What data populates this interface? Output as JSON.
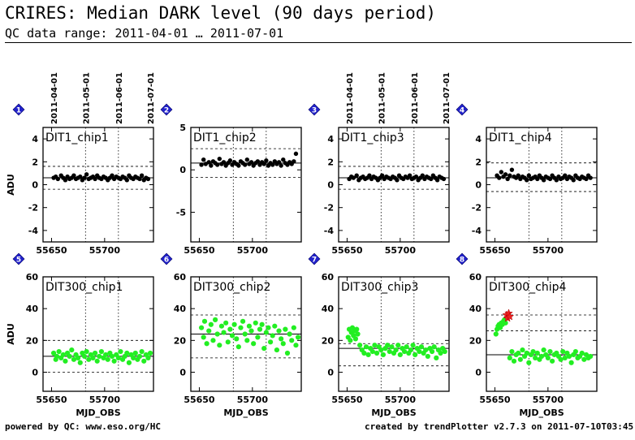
{
  "header": {
    "title": "CRIRES: Median DARK level (90 days period)",
    "subtitle": "QC data range: 2011-04-01 … 2011-07-01"
  },
  "footer": {
    "left": "powered by QC: www.eso.org/HC",
    "right": "created by trendPlotter v2.7.3 on 2011-07-10T03:45:03"
  },
  "colors": {
    "dit1": "#000000",
    "dit300": "#22ee22",
    "outlier": "#ee2222",
    "marker": "#2222cc"
  },
  "date_ticks": [
    "2011-04-01",
    "2011-05-01",
    "2011-06-01",
    "2011-07-01"
  ],
  "chart_data": [
    {
      "type": "scatter",
      "index": "1",
      "label": "DIT1_chip1",
      "ylabel": "ADU",
      "xlabel": "",
      "xlim": [
        55642,
        55746
      ],
      "ylim": [
        -5,
        5
      ],
      "xticks": [
        55650,
        55700
      ],
      "yticks": [
        -4,
        -2,
        0,
        2,
        4
      ],
      "ref_line": 0.6,
      "band": [
        1.6,
        -0.4
      ],
      "color": "#000000",
      "date_axis": true,
      "x": [
        55652,
        55654,
        55656,
        55659,
        55661,
        55663,
        55665,
        55667,
        55669,
        55671,
        55673,
        55675,
        55677,
        55679,
        55681,
        55683,
        55685,
        55687,
        55689,
        55691,
        55693,
        55695,
        55697,
        55699,
        55701,
        55703,
        55705,
        55707,
        55709,
        55711,
        55713,
        55715,
        55717,
        55719,
        55721,
        55723,
        55725,
        55727,
        55729,
        55731,
        55733,
        55735,
        55737,
        55739,
        55741
      ],
      "y": [
        0.6,
        0.7,
        0.5,
        0.8,
        0.6,
        0.4,
        0.7,
        0.5,
        0.6,
        0.8,
        0.5,
        0.6,
        0.7,
        0.4,
        0.6,
        0.9,
        0.5,
        0.6,
        0.7,
        0.5,
        0.8,
        0.6,
        0.5,
        0.7,
        0.6,
        0.4,
        0.6,
        0.8,
        0.5,
        0.7,
        0.6,
        0.5,
        0.7,
        0.6,
        0.4,
        0.8,
        0.6,
        0.5,
        0.7,
        0.6,
        0.5,
        0.8,
        0.4,
        0.6,
        0.5
      ]
    },
    {
      "type": "scatter",
      "index": "2",
      "label": "DIT1_chip2",
      "ylabel": "",
      "xlabel": "",
      "xlim": [
        55642,
        55746
      ],
      "ylim": [
        -8.5,
        5
      ],
      "xticks": [
        55650,
        55700
      ],
      "yticks": [
        -5,
        0,
        5
      ],
      "ref_line": 0.8,
      "band": [
        2.5,
        -0.9
      ],
      "color": "#000000",
      "date_axis": false,
      "x": [
        55652,
        55654,
        55656,
        55659,
        55661,
        55663,
        55665,
        55667,
        55669,
        55671,
        55673,
        55675,
        55677,
        55679,
        55681,
        55683,
        55685,
        55687,
        55689,
        55691,
        55693,
        55695,
        55697,
        55699,
        55701,
        55703,
        55705,
        55707,
        55709,
        55711,
        55713,
        55715,
        55717,
        55719,
        55721,
        55723,
        55725,
        55727,
        55729,
        55731,
        55733,
        55735,
        55737,
        55739,
        55741
      ],
      "y": [
        0.6,
        1.2,
        0.7,
        0.9,
        0.5,
        1.0,
        0.8,
        0.6,
        1.3,
        0.7,
        0.9,
        0.5,
        0.8,
        1.1,
        0.6,
        0.9,
        0.7,
        0.5,
        1.0,
        0.8,
        0.6,
        1.2,
        0.7,
        0.9,
        0.5,
        0.8,
        1.0,
        0.6,
        0.9,
        0.7,
        1.1,
        0.5,
        0.8,
        0.6,
        1.0,
        0.7,
        0.9,
        0.5,
        1.2,
        0.8,
        0.6,
        0.9,
        0.7,
        1.0,
        1.9
      ]
    },
    {
      "type": "scatter",
      "index": "3",
      "label": "DIT1_chip3",
      "ylabel": "",
      "xlabel": "",
      "xlim": [
        55642,
        55746
      ],
      "ylim": [
        -5,
        5
      ],
      "xticks": [
        55650,
        55700
      ],
      "yticks": [
        -4,
        -2,
        0,
        2,
        4
      ],
      "ref_line": 0.6,
      "band": [
        1.6,
        -0.4
      ],
      "color": "#000000",
      "date_axis": true,
      "x": [
        55652,
        55654,
        55656,
        55659,
        55661,
        55663,
        55665,
        55667,
        55669,
        55671,
        55673,
        55675,
        55677,
        55679,
        55681,
        55683,
        55685,
        55687,
        55689,
        55691,
        55693,
        55695,
        55697,
        55699,
        55701,
        55703,
        55705,
        55707,
        55709,
        55711,
        55713,
        55715,
        55717,
        55719,
        55721,
        55723,
        55725,
        55727,
        55729,
        55731,
        55733,
        55735,
        55737,
        55739,
        55741
      ],
      "y": [
        0.5,
        0.7,
        0.6,
        0.8,
        0.4,
        0.6,
        0.7,
        0.5,
        0.6,
        0.8,
        0.5,
        0.7,
        0.6,
        0.4,
        0.6,
        0.8,
        0.5,
        0.7,
        0.6,
        0.5,
        0.7,
        0.6,
        0.4,
        0.8,
        0.6,
        0.5,
        0.7,
        0.6,
        0.8,
        0.5,
        0.6,
        0.7,
        0.4,
        0.6,
        0.8,
        0.5,
        0.7,
        0.6,
        0.5,
        0.8,
        0.6,
        0.4,
        0.7,
        0.6,
        0.5
      ]
    },
    {
      "type": "scatter",
      "index": "4",
      "label": "DIT1_chip4",
      "ylabel": "",
      "xlabel": "",
      "xlim": [
        55642,
        55746
      ],
      "ylim": [
        -5,
        5
      ],
      "xticks": [
        55650,
        55700
      ],
      "yticks": [
        -4,
        -2,
        0,
        2,
        4
      ],
      "ref_line": 0.6,
      "band": [
        1.9,
        -0.6
      ],
      "color": "#000000",
      "date_axis": false,
      "x": [
        55652,
        55654,
        55656,
        55658,
        55660,
        55662,
        55664,
        55666,
        55668,
        55670,
        55672,
        55674,
        55676,
        55678,
        55680,
        55682,
        55684,
        55686,
        55688,
        55690,
        55692,
        55694,
        55696,
        55698,
        55700,
        55702,
        55704,
        55706,
        55708,
        55710,
        55712,
        55714,
        55716,
        55718,
        55720,
        55722,
        55724,
        55726,
        55728,
        55730,
        55732,
        55734,
        55736,
        55738,
        55740
      ],
      "y": [
        0.8,
        0.6,
        1.1,
        0.7,
        0.9,
        0.5,
        0.8,
        1.3,
        0.7,
        0.6,
        0.8,
        0.5,
        0.7,
        0.6,
        0.4,
        0.8,
        0.5,
        0.6,
        0.7,
        0.5,
        0.8,
        0.6,
        0.4,
        0.7,
        0.6,
        0.5,
        0.8,
        0.6,
        0.4,
        0.7,
        0.5,
        0.6,
        0.8,
        0.5,
        0.7,
        0.6,
        0.4,
        0.8,
        0.6,
        0.5,
        0.7,
        0.6,
        0.5,
        0.8,
        0.6
      ]
    },
    {
      "type": "scatter",
      "index": "5",
      "label": "DIT300_chip1",
      "ylabel": "ADU",
      "xlabel": "MJD_OBS",
      "xlim": [
        55642,
        55746
      ],
      "ylim": [
        -12,
        60
      ],
      "xticks": [
        55650,
        55700
      ],
      "yticks": [
        0,
        20,
        40,
        60
      ],
      "ref_line": 10,
      "band": [
        20,
        0
      ],
      "color": "#22ee22",
      "date_axis": false,
      "x": [
        55652,
        55654,
        55655,
        55657,
        55659,
        55661,
        55663,
        55665,
        55667,
        55669,
        55671,
        55673,
        55675,
        55677,
        55679,
        55681,
        55683,
        55685,
        55687,
        55689,
        55691,
        55693,
        55695,
        55697,
        55699,
        55701,
        55703,
        55705,
        55707,
        55709,
        55711,
        55713,
        55715,
        55717,
        55719,
        55721,
        55723,
        55725,
        55727,
        55729,
        55731,
        55733,
        55735,
        55737,
        55739,
        55741,
        55743
      ],
      "y": [
        12,
        8,
        10,
        13,
        9,
        11,
        7,
        12,
        10,
        14,
        8,
        11,
        9,
        6,
        12,
        10,
        13,
        8,
        11,
        9,
        12,
        7,
        10,
        13,
        9,
        11,
        8,
        12,
        10,
        7,
        11,
        9,
        13,
        8,
        10,
        12,
        6,
        11,
        9,
        12,
        8,
        10,
        13,
        7,
        11,
        9,
        12
      ]
    },
    {
      "type": "scatter",
      "index": "6",
      "label": "DIT300_chip2",
      "ylabel": "",
      "xlabel": "MJD_OBS",
      "xlim": [
        55642,
        55746
      ],
      "ylim": [
        -12,
        60
      ],
      "xticks": [
        55650,
        55700
      ],
      "yticks": [
        0,
        20,
        40,
        60
      ],
      "ref_line": 24,
      "band": [
        36,
        9
      ],
      "color": "#22ee22",
      "date_axis": false,
      "x": [
        55652,
        55654,
        55655,
        55657,
        55659,
        55661,
        55663,
        55665,
        55667,
        55669,
        55671,
        55673,
        55675,
        55677,
        55679,
        55681,
        55683,
        55685,
        55687,
        55689,
        55691,
        55693,
        55695,
        55697,
        55699,
        55701,
        55703,
        55705,
        55707,
        55709,
        55711,
        55713,
        55715,
        55717,
        55719,
        55721,
        55723,
        55725,
        55727,
        55729,
        55731,
        55733,
        55735,
        55737,
        55739,
        55741,
        55743
      ],
      "y": [
        28,
        22,
        32,
        18,
        26,
        30,
        20,
        33,
        24,
        17,
        29,
        25,
        31,
        19,
        27,
        23,
        30,
        21,
        16,
        28,
        32,
        24,
        20,
        29,
        26,
        18,
        31,
        22,
        27,
        30,
        15,
        25,
        28,
        19,
        23,
        29,
        14,
        26,
        21,
        18,
        27,
        12,
        24,
        20,
        28,
        17,
        22
      ]
    },
    {
      "type": "scatter",
      "index": "7",
      "label": "DIT300_chip3",
      "ylabel": "",
      "xlabel": "MJD_OBS",
      "xlim": [
        55642,
        55746
      ],
      "ylim": [
        -12,
        60
      ],
      "xticks": [
        55650,
        55700
      ],
      "yticks": [
        0,
        20,
        40,
        60
      ],
      "ref_line": 15,
      "band": [
        18,
        4
      ],
      "color": "#22ee22",
      "date_axis": false,
      "x": [
        55651,
        55652,
        55653,
        55654,
        55655,
        55656,
        55657,
        55658,
        55659,
        55660,
        55662,
        55664,
        55666,
        55668,
        55670,
        55672,
        55674,
        55676,
        55678,
        55680,
        55682,
        55684,
        55686,
        55688,
        55690,
        55692,
        55694,
        55696,
        55698,
        55700,
        55702,
        55704,
        55706,
        55708,
        55710,
        55712,
        55714,
        55716,
        55718,
        55720,
        55722,
        55724,
        55726,
        55728,
        55730,
        55732,
        55734,
        55736,
        55738,
        55740,
        55742
      ],
      "y": [
        22,
        27,
        20,
        25,
        28,
        23,
        26,
        21,
        27,
        24,
        17,
        14,
        12,
        16,
        11,
        15,
        13,
        17,
        12,
        16,
        14,
        11,
        15,
        17,
        13,
        16,
        12,
        14,
        17,
        11,
        15,
        13,
        16,
        12,
        14,
        17,
        11,
        15,
        13,
        16,
        12,
        14,
        10,
        15,
        13,
        16,
        9,
        14,
        12,
        15,
        13
      ]
    },
    {
      "type": "scatter",
      "index": "8",
      "label": "DIT300_chip4",
      "ylabel": "",
      "xlabel": "MJD_OBS",
      "xlim": [
        55642,
        55746
      ],
      "ylim": [
        -12,
        60
      ],
      "xticks": [
        55650,
        55700
      ],
      "yticks": [
        0,
        20,
        40,
        60
      ],
      "ref_line": 11,
      "band": [
        36,
        26
      ],
      "color": "#22ee22",
      "date_axis": false,
      "x": [
        55651,
        55652,
        55653,
        55654,
        55655,
        55656,
        55657,
        55658,
        55659,
        55660,
        55664,
        55666,
        55668,
        55670,
        55672,
        55674,
        55676,
        55678,
        55680,
        55682,
        55684,
        55686,
        55688,
        55690,
        55692,
        55694,
        55696,
        55698,
        55700,
        55702,
        55704,
        55706,
        55708,
        55710,
        55712,
        55714,
        55716,
        55718,
        55720,
        55722,
        55724,
        55726,
        55728,
        55730,
        55732,
        55734,
        55736,
        55738,
        55740
      ],
      "y": [
        24,
        27,
        29,
        30,
        28,
        31,
        30,
        32,
        33,
        31,
        9,
        13,
        7,
        11,
        12,
        8,
        14,
        10,
        12,
        6,
        11,
        13,
        9,
        12,
        8,
        10,
        14,
        11,
        9,
        13,
        7,
        11,
        12,
        10,
        8,
        13,
        9,
        12,
        10,
        6,
        11,
        13,
        9,
        10,
        12,
        8,
        11,
        9,
        10
      ],
      "outliers_x": [
        55661,
        55662,
        55663,
        55664
      ],
      "outliers_y": [
        36,
        34,
        37,
        35
      ]
    }
  ]
}
